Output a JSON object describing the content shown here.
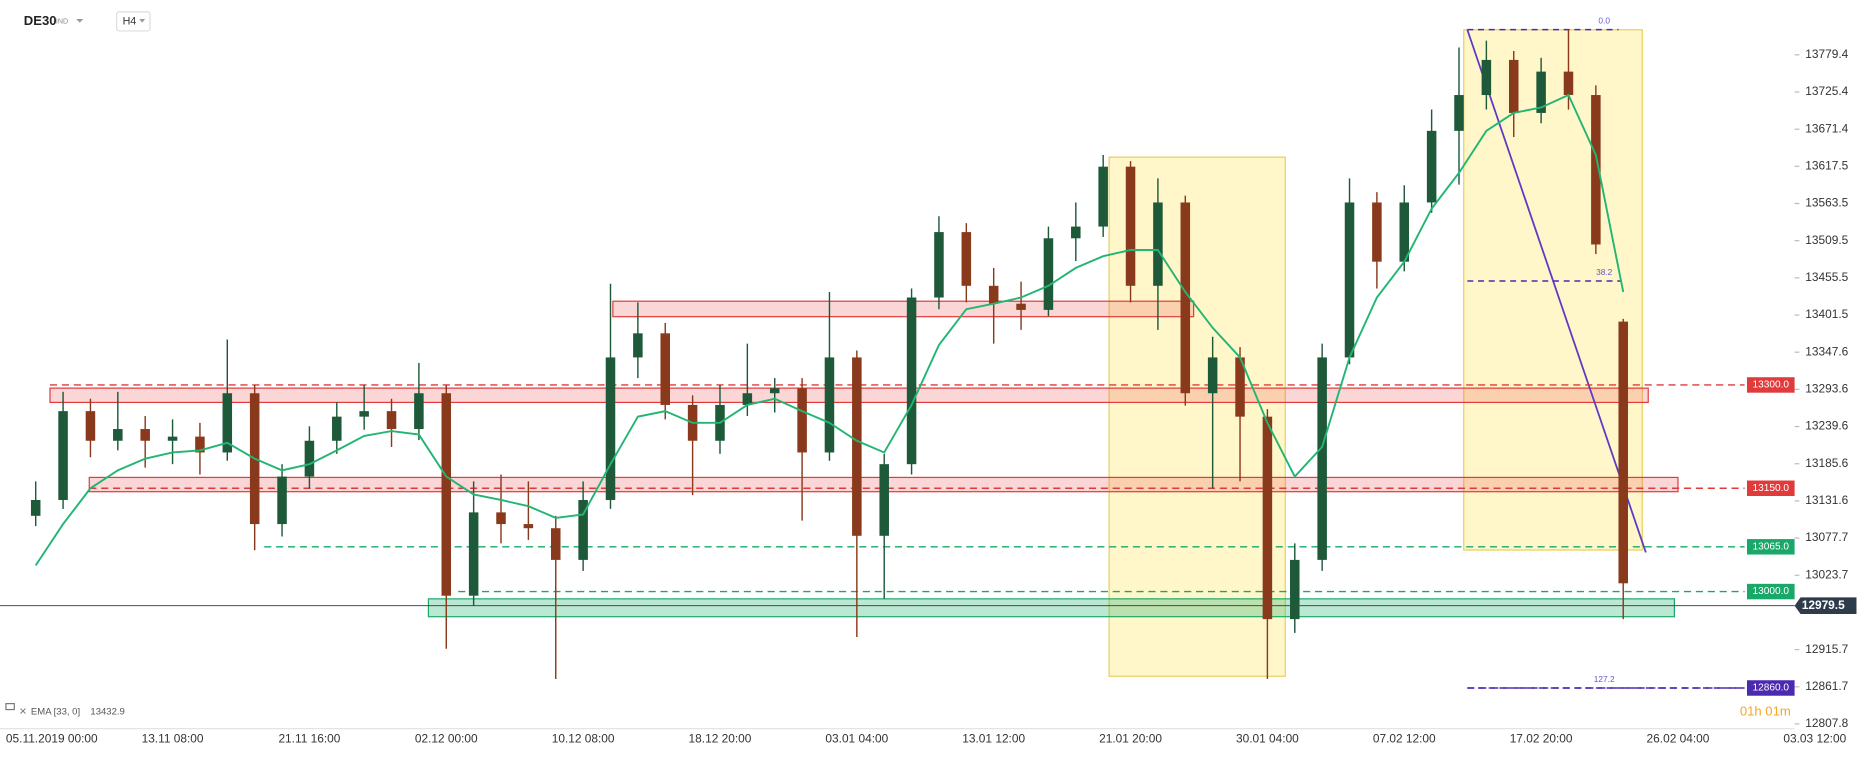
{
  "chart_data": {
    "type": "candlestick",
    "title": "DE30",
    "instrument_type": "IND",
    "timeframe": "H4",
    "categories": [
      "05.11.2019 00:00",
      null,
      null,
      null,
      null,
      "13.11 08:00",
      null,
      null,
      null,
      null,
      "21.11 16:00",
      null,
      null,
      null,
      null,
      "02.12 00:00",
      null,
      null,
      null,
      null,
      "10.12 08:00",
      null,
      null,
      null,
      null,
      "18.12 20:00",
      null,
      null,
      null,
      null,
      "03.01 04:00",
      null,
      null,
      null,
      null,
      "13.01 12:00",
      null,
      null,
      null,
      null,
      "21.01 20:00",
      null,
      null,
      null,
      null,
      "30.01 04:00",
      null,
      null,
      null,
      null,
      "07.02 12:00",
      null,
      null,
      null,
      null,
      "17.02 20:00",
      null,
      null,
      null,
      null,
      "26.02 04:00",
      null,
      null,
      null,
      null,
      "03.03 12:00"
    ],
    "open": [
      13110,
      13133,
      13262,
      13219,
      13236,
      13219,
      13225,
      13202,
      13288,
      13098,
      13167,
      13219,
      13254,
      13262,
      13236,
      13288,
      12994,
      13115,
      13098,
      13092,
      13046,
      13133,
      13340,
      13375,
      13271,
      13219,
      13271,
      13288,
      13295,
      13202,
      13340,
      13081,
      13185,
      13427,
      13522,
      13444,
      13418,
      13409,
      13513,
      13530,
      13617,
      13444,
      13565,
      13288,
      13340,
      13254,
      12960,
      13046,
      13340,
      13565,
      13479,
      13565,
      13669,
      13721,
      13772,
      13695,
      13755,
      13721,
      13392,
      null,
      null,
      null,
      null,
      null,
      null,
      null
    ],
    "high": [
      13160,
      13290,
      13280,
      13290,
      13255,
      13250,
      13245,
      13366,
      13300,
      13185,
      13240,
      13275,
      13300,
      13280,
      13332,
      13300,
      13160,
      13170,
      13160,
      13110,
      13160,
      13447,
      13420,
      13390,
      13285,
      13300,
      13360,
      13310,
      13310,
      13435,
      13350,
      13200,
      13440,
      13545,
      13535,
      13470,
      13450,
      13530,
      13565,
      13634,
      13625,
      13600,
      13575,
      13370,
      13355,
      13265,
      13070,
      13360,
      13600,
      13580,
      13590,
      13700,
      13790,
      13800,
      13785,
      13775,
      13816,
      13735,
      13396,
      null,
      null,
      null,
      null,
      null,
      null,
      null
    ],
    "low": [
      13095,
      13120,
      13195,
      13205,
      13180,
      13185,
      13170,
      13190,
      13060,
      13080,
      13150,
      13200,
      13235,
      13210,
      13220,
      12917,
      12980,
      13070,
      13075,
      12873,
      13030,
      13120,
      13310,
      13250,
      13140,
      13200,
      13255,
      13260,
      13103,
      13190,
      12934,
      12990,
      13170,
      13410,
      13420,
      13360,
      13380,
      13400,
      13480,
      13515,
      13420,
      13380,
      13270,
      13150,
      13160,
      12873,
      12940,
      13030,
      13330,
      13440,
      13465,
      13550,
      13591,
      13700,
      13660,
      13680,
      13700,
      13490,
      12960,
      null,
      null,
      null,
      null,
      null,
      null,
      null
    ],
    "close": [
      13133,
      13262,
      13219,
      13236,
      13219,
      13225,
      13202,
      13288,
      13098,
      13167,
      13219,
      13254,
      13262,
      13236,
      13288,
      12994,
      13115,
      13098,
      13092,
      13046,
      13133,
      13340,
      13375,
      13271,
      13219,
      13271,
      13288,
      13295,
      13202,
      13340,
      13081,
      13185,
      13427,
      13522,
      13444,
      13418,
      13409,
      13513,
      13530,
      13617,
      13444,
      13565,
      13288,
      13340,
      13254,
      12960,
      13046,
      13340,
      13565,
      13479,
      13565,
      13669,
      13721,
      13772,
      13695,
      13755,
      13721,
      13504,
      13012,
      null,
      null,
      null,
      null,
      null,
      null,
      null
    ],
    "up_color": "#1e5a3a",
    "down_color": "#8a3a1c",
    "ema": {
      "name": "EMA [33, 0]",
      "value": 13432.9,
      "color": "#22b573",
      "values": [
        13038,
        13098,
        13150,
        13176,
        13193,
        13202,
        13205,
        13216,
        13193,
        13176,
        13185,
        13205,
        13226,
        13233,
        13228,
        13167,
        13141,
        13133,
        13124,
        13107,
        13112,
        13185,
        13254,
        13262,
        13245,
        13245,
        13271,
        13280,
        13262,
        13245,
        13219,
        13202,
        13271,
        13358,
        13410,
        13418,
        13427,
        13444,
        13470,
        13487,
        13496,
        13496,
        13435,
        13383,
        13340,
        13245,
        13167,
        13210,
        13340,
        13427,
        13479,
        13556,
        13608,
        13669,
        13695,
        13703,
        13721,
        13634,
        13435,
        null,
        null,
        null,
        null,
        null,
        null,
        null
      ]
    },
    "ylim": [
      12801,
      13859
    ],
    "yticks": [
      13779.4,
      13725.4,
      13671.4,
      13617.5,
      13563.5,
      13509.5,
      13455.5,
      13401.5,
      13347.6,
      13293.6,
      13239.6,
      13185.6,
      13131.6,
      13077.7,
      13023.7,
      12915.7,
      12861.7,
      12807.8
    ],
    "grid": false,
    "levels": [
      {
        "value": 13300,
        "label": "13300.0",
        "color": "#e03a3a"
      },
      {
        "value": 13150,
        "label": "13150.0",
        "color": "#e03a3a"
      },
      {
        "value": 13065,
        "label": "13065.0",
        "color": "#1aa86a"
      },
      {
        "value": 13000,
        "label": "13000.0",
        "color": "#1aa86a"
      },
      {
        "value": 12860,
        "label": "12860.0",
        "color": "#4b2ab0"
      }
    ],
    "current_price": 12979.5,
    "fib": [
      {
        "level": {
          "value": 0,
          "label": "0.0"
        },
        "price": 13816
      },
      {
        "level": 38.2,
        "price": 13451
      },
      {
        "level": 127.2,
        "price": 12860
      }
    ],
    "timer": "01h 01m"
  }
}
